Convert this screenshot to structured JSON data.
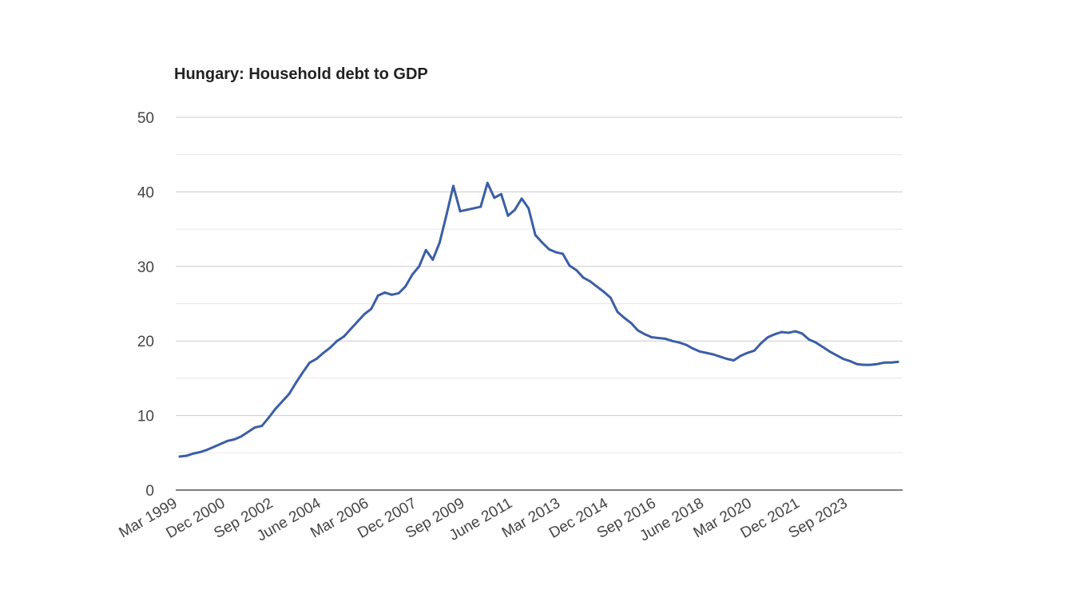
{
  "chart_data": {
    "type": "line",
    "title": "Hungary: Household debt to GDP",
    "xlabel": "",
    "ylabel": "",
    "ylim": [
      0,
      50
    ],
    "yticks": [
      0,
      10,
      20,
      30,
      40,
      50
    ],
    "grid": true,
    "legend": "none",
    "x_tick_labels": [
      "Mar 1999",
      "Dec 2000",
      "Sep 2002",
      "June 2004",
      "Mar 2006",
      "Dec 2007",
      "Sep 2009",
      "June 2011",
      "Mar 2013",
      "Dec 2014",
      "Sep 2016",
      "June 2018",
      "Mar 2020",
      "Dec 2021",
      "Sep 2023"
    ],
    "x_tick_positions": [
      0,
      7,
      14,
      21,
      28,
      35,
      42,
      49,
      56,
      63,
      70,
      77,
      84,
      91,
      98
    ],
    "x_start": "Mar 1999",
    "frequency": "quarterly",
    "series": [
      {
        "name": "Household debt to GDP",
        "color": "#3b5ea6",
        "values": [
          4.5,
          4.6,
          4.9,
          5.1,
          5.4,
          5.8,
          6.2,
          6.6,
          6.8,
          7.2,
          7.8,
          8.4,
          8.6,
          9.7,
          10.9,
          11.9,
          12.9,
          14.4,
          15.8,
          17.1,
          17.6,
          18.4,
          19.1,
          20.0,
          20.6,
          21.6,
          22.6,
          23.6,
          24.3,
          26.1,
          26.5,
          26.2,
          26.4,
          27.3,
          28.9,
          30.0,
          32.2,
          30.9,
          33.2,
          36.9,
          40.8,
          37.4,
          37.6,
          37.8,
          38.0,
          41.2,
          39.2,
          39.7,
          36.8,
          37.6,
          39.1,
          37.8,
          34.2,
          33.2,
          32.3,
          31.9,
          31.7,
          30.1,
          29.5,
          28.5,
          28.0,
          27.3,
          26.6,
          25.8,
          23.9,
          23.1,
          22.4,
          21.4,
          20.9,
          20.5,
          20.4,
          20.3,
          20.0,
          19.8,
          19.5,
          19.0,
          18.6,
          18.4,
          18.2,
          17.9,
          17.6,
          17.4,
          18.0,
          18.4,
          18.7,
          19.7,
          20.5,
          20.9,
          21.2,
          21.1,
          21.3,
          21.0,
          20.2,
          19.8,
          19.2,
          18.6,
          18.1,
          17.6,
          17.3,
          16.9,
          16.8,
          16.8,
          16.9,
          17.1,
          17.1,
          17.2
        ]
      }
    ]
  }
}
